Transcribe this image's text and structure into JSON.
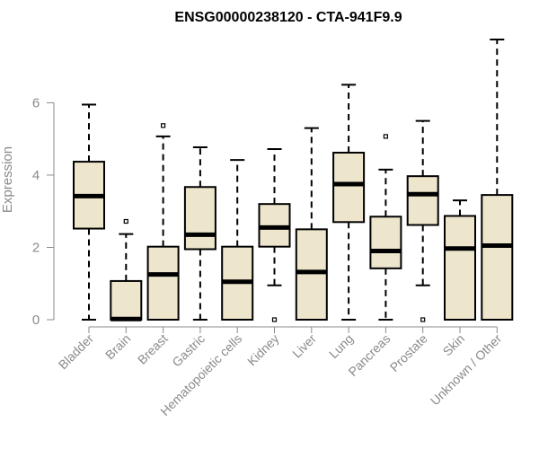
{
  "chart_data": {
    "type": "boxplot",
    "title": "ENSG00000238120 - CTA-941F9.9",
    "ylabel": "Expression",
    "xlabel": "",
    "ylim": [
      0,
      7.8
    ],
    "yticks": [
      0,
      2,
      4,
      6
    ],
    "box_fill": "#ede5cc",
    "box_stroke": "#000000",
    "categories": [
      "Bladder",
      "Brain",
      "Breast",
      "Gastric",
      "Hematopoietic cells",
      "Kidney",
      "Liver",
      "Lung",
      "Pancreas",
      "Prostate",
      "Skin",
      "Unknown / Other"
    ],
    "boxes": [
      {
        "name": "Bladder",
        "min": 0.0,
        "q1": 2.52,
        "median": 3.42,
        "q3": 4.37,
        "max": 5.95,
        "outliers": []
      },
      {
        "name": "Brain",
        "min": 0.0,
        "q1": 0.0,
        "median": 0.02,
        "q3": 1.07,
        "max": 2.37,
        "outliers": [
          2.72
        ]
      },
      {
        "name": "Breast",
        "min": 0.0,
        "q1": 0.0,
        "median": 1.25,
        "q3": 2.02,
        "max": 5.07,
        "outliers": [
          5.37
        ]
      },
      {
        "name": "Gastric",
        "min": 0.0,
        "q1": 1.95,
        "median": 2.35,
        "q3": 3.67,
        "max": 4.77,
        "outliers": []
      },
      {
        "name": "Hematopoietic cells",
        "min": 0.0,
        "q1": 0.0,
        "median": 1.05,
        "q3": 2.02,
        "max": 4.42,
        "outliers": []
      },
      {
        "name": "Kidney",
        "min": 0.95,
        "q1": 2.02,
        "median": 2.55,
        "q3": 3.2,
        "max": 4.72,
        "outliers": [
          0.0
        ]
      },
      {
        "name": "Liver",
        "min": 0.0,
        "q1": 0.0,
        "median": 1.32,
        "q3": 2.5,
        "max": 5.3,
        "outliers": []
      },
      {
        "name": "Lung",
        "min": 0.0,
        "q1": 2.7,
        "median": 3.75,
        "q3": 4.62,
        "max": 6.5,
        "outliers": []
      },
      {
        "name": "Pancreas",
        "min": 0.0,
        "q1": 1.42,
        "median": 1.9,
        "q3": 2.85,
        "max": 4.15,
        "outliers": [
          5.07
        ]
      },
      {
        "name": "Prostate",
        "min": 0.95,
        "q1": 2.62,
        "median": 3.47,
        "q3": 3.97,
        "max": 5.5,
        "outliers": [
          0.0
        ]
      },
      {
        "name": "Skin",
        "min": 0.0,
        "q1": 0.0,
        "median": 1.97,
        "q3": 2.87,
        "max": 3.3,
        "outliers": []
      },
      {
        "name": "Unknown / Other",
        "min": 0.0,
        "q1": 0.0,
        "median": 2.05,
        "q3": 3.45,
        "max": 7.75,
        "outliers": []
      }
    ]
  }
}
